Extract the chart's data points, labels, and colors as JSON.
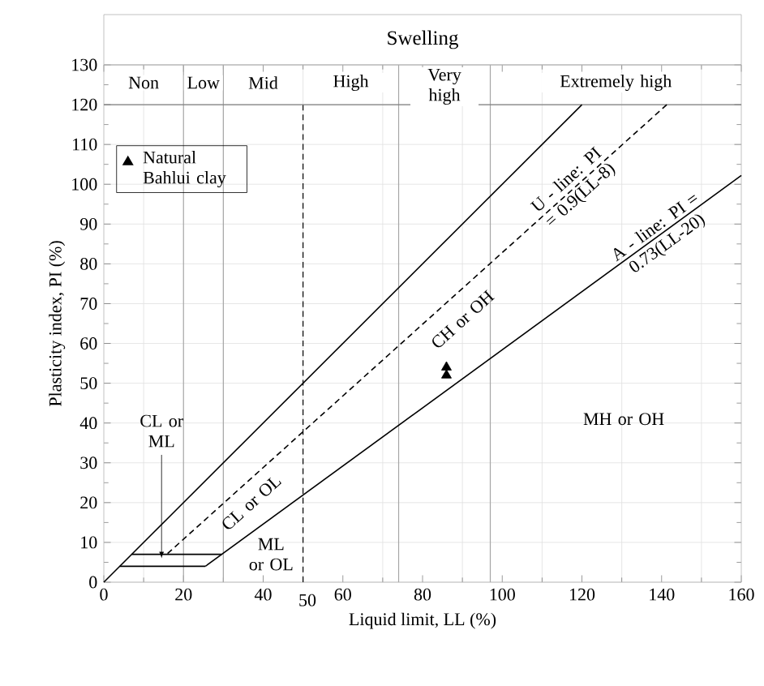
{
  "chart_data": {
    "type": "line",
    "title": "Swelling",
    "xlabel": "Liquid limit, LL  (%)",
    "ylabel": "Plasticity index, PI (%)",
    "xlim": [
      0,
      160
    ],
    "ylim": [
      0,
      130
    ],
    "xticks": [
      0,
      20,
      40,
      60,
      80,
      100,
      120,
      140,
      160
    ],
    "yticks": [
      0,
      10,
      20,
      30,
      40,
      50,
      60,
      70,
      80,
      90,
      100,
      110,
      120,
      130
    ],
    "grid": true,
    "legend": "top left",
    "series": [
      {
        "x": [
          0,
          120
        ],
        "values": [
          0,
          120
        ],
        "color": "#000000",
        "line_style": "solid"
      },
      {
        "x": [
          16,
          141.3
        ],
        "values": [
          7.2,
          120
        ],
        "color": "#000000",
        "line_style": "dashed"
      },
      {
        "x": [
          25.5,
          160
        ],
        "values": [
          4,
          102.2
        ],
        "color": "#000000",
        "line_style": "solid"
      },
      {
        "x": [
          4,
          25.5
        ],
        "values": [
          4,
          4
        ],
        "color": "#000000",
        "line_style": "solid"
      },
      {
        "x": [
          7,
          29.6
        ],
        "values": [
          7,
          7
        ],
        "color": "#000000",
        "line_style": "solid"
      },
      {
        "type": "scatter",
        "name": "Natural Bahlui clay",
        "x": [
          86,
          86
        ],
        "values": [
          54,
          52
        ],
        "color": "#000000",
        "marker": "triangle"
      }
    ],
    "ref_lines": [
      {
        "axis": "x",
        "value": 50,
        "label": "50",
        "line_style": "dashed",
        "color": "#000000"
      },
      {
        "axis": "x",
        "value": 20,
        "color": "#a6a6a6"
      },
      {
        "axis": "x",
        "value": 30,
        "color": "#a6a6a6"
      },
      {
        "axis": "x",
        "value": 74,
        "color": "#a6a6a6"
      },
      {
        "axis": "x",
        "value": 97,
        "color": "#a6a6a6"
      },
      {
        "axis": "y",
        "value": 120,
        "color": "#7f7f7f"
      }
    ],
    "annotations": [
      "Non",
      "Low",
      "Mid",
      "High",
      "Very high",
      "Extremely high",
      {
        "text": "CL or ML",
        "x": 14.5,
        "y": 6
      },
      "CL or OL",
      "ML or OL",
      "CH or OH",
      "MH or OH",
      {
        "text": "U - line: PI = 0.9(LL-8)",
        "x": 118,
        "y": 99
      },
      {
        "text": "A - line: PI = 0.73(LL-20)",
        "x": 140,
        "y": 87
      }
    ]
  }
}
